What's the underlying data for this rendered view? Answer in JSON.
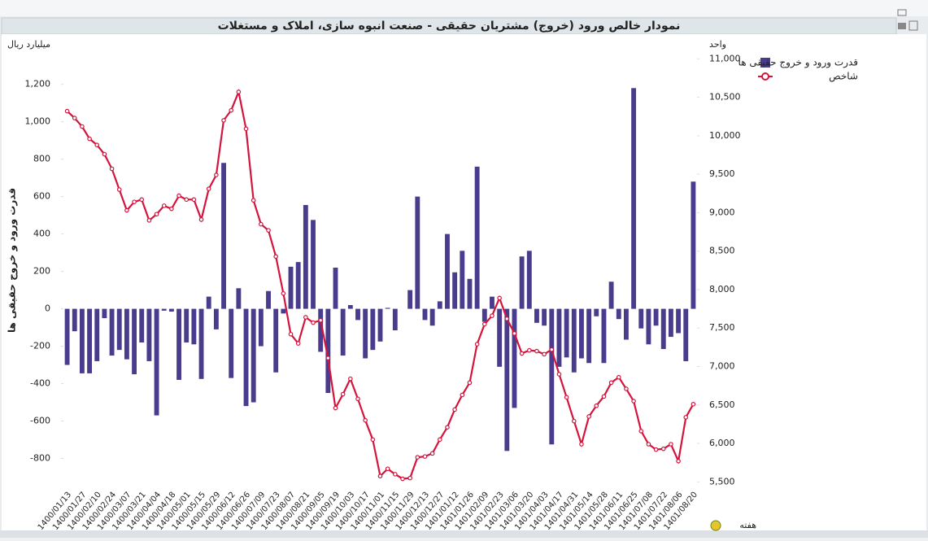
{
  "chart_data": {
    "type": "bar",
    "title": "نمودار خالص ورود (خروج) مشتریان حقیقی - صنعت انبوه سازی، املاک و مستغلات",
    "y_unit": "میلیارد ریال",
    "y2_unit": "واحد",
    "ylabel": "قدرت ورود و خروج حقیقی ها",
    "xlabel": "هفته",
    "legend": "right",
    "grid": false,
    "categories": [
      "1400/01/13",
      null,
      "1400/01/27",
      null,
      "1400/02/10",
      null,
      "1400/02/24",
      null,
      "1400/03/07",
      null,
      "1400/03/21",
      null,
      "1400/04/04",
      null,
      "1400/04/18",
      null,
      "1400/05/01",
      null,
      "1400/05/15",
      null,
      "1400/05/29",
      null,
      "1400/06/12",
      null,
      "1400/06/26",
      null,
      "1400/07/09",
      null,
      "1400/07/23",
      null,
      "1400/08/07",
      null,
      "1400/08/21",
      null,
      "1400/09/05",
      null,
      "1400/09/19",
      null,
      "1400/10/03",
      null,
      "1400/10/17",
      null,
      "1400/11/01",
      null,
      "1400/11/15",
      null,
      "1400/11/29",
      null,
      "1400/12/13",
      null,
      "1400/12/27",
      null,
      "1401/01/12",
      null,
      "1401/01/26",
      null,
      "1401/02/09",
      null,
      "1401/02/23",
      null,
      "1401/03/06",
      null,
      "1401/03/20",
      null,
      "1401/04/03",
      null,
      "1401/04/17",
      null,
      "1401/04/31",
      null,
      "1401/05/14",
      null,
      "1401/05/28",
      null,
      "1401/06/11",
      null,
      "1401/06/25",
      null,
      "1401/07/08",
      null,
      "1401/07/22",
      null,
      "1401/08/06",
      null,
      "1401/08/20"
    ],
    "ylim": [
      -950,
      1390
    ],
    "yticks": [
      -800,
      -600,
      -400,
      -200,
      0,
      200,
      400,
      600,
      800,
      {
        "value": 1000,
        "label": "1,000"
      },
      {
        "value": 1200,
        "label": "1,200"
      }
    ],
    "y2lim": [
      5440,
      11130
    ],
    "y2ticks": [
      {
        "value": 5500,
        "label": "5,500"
      },
      {
        "value": 6000,
        "label": "6,000"
      },
      {
        "value": 6500,
        "label": "6,500"
      },
      {
        "value": 7000,
        "label": "7,000"
      },
      {
        "value": 7500,
        "label": "7,500"
      },
      {
        "value": 8000,
        "label": "8,000"
      },
      {
        "value": 8500,
        "label": "8,500"
      },
      {
        "value": 9000,
        "label": "9,000"
      },
      {
        "value": 9500,
        "label": "9,500"
      },
      {
        "value": 10000,
        "label": "10,000"
      },
      {
        "value": 10500,
        "label": "10,500"
      },
      {
        "value": 11000,
        "label": "11,000"
      }
    ],
    "series": [
      {
        "name": "قدرت ورود و خروج حقیقی ها",
        "type": "bar",
        "color": "#4a3c8c",
        "values": [
          -300,
          -120,
          -345,
          -345,
          -280,
          -50,
          -250,
          -220,
          -270,
          -350,
          -180,
          -280,
          -570,
          -10,
          -15,
          -380,
          -180,
          -190,
          -375,
          65,
          -110,
          780,
          -370,
          110,
          -520,
          -500,
          -200,
          95,
          -340,
          -25,
          225,
          250,
          555,
          475,
          -230,
          -450,
          220,
          -250,
          20,
          -60,
          -265,
          -220,
          -175,
          5,
          -115,
          0,
          100,
          600,
          -60,
          -90,
          40,
          400,
          195,
          310,
          160,
          760,
          -70,
          65,
          -310,
          -760,
          -530,
          280,
          310,
          -75,
          -90,
          -725,
          -310,
          -260,
          -340,
          -265,
          -290,
          -40,
          -290,
          145,
          -55,
          -165,
          1180,
          -105,
          -190,
          -90,
          -215,
          -150,
          -130,
          -280,
          680
        ]
      },
      {
        "name": "شاخص",
        "type": "line",
        "axis": "y2",
        "color": "#d4143c",
        "values": [
          10320,
          10230,
          10120,
          9960,
          9880,
          9760,
          9570,
          9300,
          9030,
          9140,
          9170,
          8900,
          8980,
          9090,
          9050,
          9220,
          9170,
          9170,
          8910,
          9310,
          9490,
          10200,
          10330,
          10570,
          10090,
          9160,
          8850,
          8770,
          8430,
          7950,
          7420,
          7300,
          7640,
          7570,
          7600,
          7110,
          6460,
          6640,
          6840,
          6580,
          6300,
          6050,
          5575,
          5670,
          5600,
          5540,
          5550,
          5820,
          5830,
          5870,
          6050,
          6210,
          6440,
          6630,
          6790,
          7290,
          7550,
          7660,
          7890,
          7620,
          7430,
          7170,
          7210,
          7200,
          7160,
          7220,
          6900,
          6600,
          6290,
          5990,
          6350,
          6490,
          6610,
          6790,
          6860,
          6710,
          6550,
          6160,
          5990,
          5920,
          5930,
          5990,
          5770,
          6340,
          6510
        ]
      }
    ]
  }
}
